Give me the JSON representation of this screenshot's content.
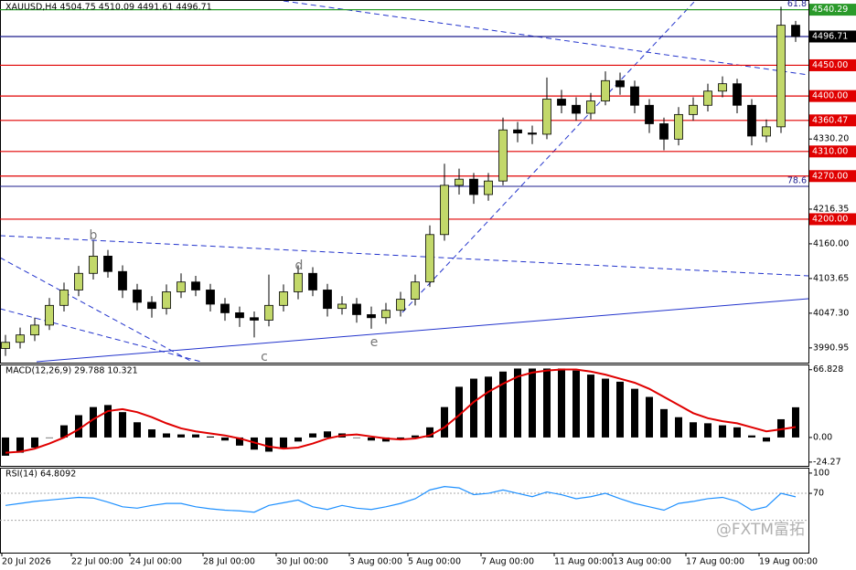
{
  "chart_data": [
    {
      "type": "candlestick",
      "title": "XAUUSD,H4  4504.75 4510.09 4491.61 4496.71",
      "categories": [
        "20 Jul 2026",
        null,
        null,
        null,
        null,
        "22 Jul 00:00",
        null,
        null,
        null,
        "24 Jul 00:00",
        null,
        null,
        null,
        null,
        "28 Jul 00:00",
        null,
        null,
        null,
        null,
        "30 Jul 00:00",
        null,
        null,
        null,
        null,
        "3 Aug 00:00",
        null,
        null,
        null,
        "5 Aug 00:00",
        null,
        null,
        null,
        null,
        "7 Aug 00:00",
        null,
        null,
        null,
        null,
        "11 Aug 00:00",
        null,
        null,
        null,
        "13 Aug 00:00",
        null,
        null,
        null,
        null,
        "17 Aug 00:00",
        null,
        null,
        null,
        null,
        "19 Aug 00:00",
        null,
        null
      ],
      "open": [
        3990,
        4000,
        4012,
        4028,
        4060,
        4085,
        4112,
        4140,
        4115,
        4085,
        4065,
        4055,
        4082,
        4098,
        4085,
        4062,
        4048,
        4040,
        4036,
        4060,
        4082,
        4112,
        4085,
        4055,
        4062,
        4045,
        4040,
        4052,
        4070,
        4098,
        4175,
        4255,
        4265,
        4240,
        4262,
        4345,
        4340,
        4338,
        4395,
        4385,
        4372,
        4392,
        4425,
        4415,
        4385,
        4355,
        4330,
        4370,
        4385,
        4408,
        4420,
        4385,
        4335,
        4350,
        4515
      ],
      "high": [
        4012,
        4024,
        4040,
        4072,
        4097,
        4124,
        4165,
        4150,
        4125,
        4095,
        4075,
        4094,
        4112,
        4108,
        4095,
        4072,
        4058,
        4050,
        4110,
        4094,
        4125,
        4122,
        4095,
        4075,
        4072,
        4058,
        4064,
        4082,
        4110,
        4190,
        4290,
        4282,
        4275,
        4275,
        4365,
        4358,
        4352,
        4430,
        4410,
        4398,
        4405,
        4440,
        4438,
        4425,
        4395,
        4365,
        4382,
        4398,
        4420,
        4432,
        4428,
        4395,
        4362,
        4545,
        4522
      ],
      "low": [
        3978,
        3990,
        4002,
        4020,
        4050,
        4075,
        4102,
        4105,
        4072,
        4052,
        4040,
        4045,
        4072,
        4075,
        4050,
        4035,
        4025,
        4008,
        4026,
        4050,
        4070,
        4075,
        4042,
        4045,
        4032,
        4022,
        4030,
        4042,
        4060,
        4090,
        4165,
        4240,
        4225,
        4230,
        4255,
        4325,
        4322,
        4330,
        4372,
        4360,
        4362,
        4385,
        4402,
        4372,
        4340,
        4312,
        4320,
        4360,
        4375,
        4398,
        4372,
        4320,
        4325,
        4340,
        4488
      ],
      "close": [
        4000,
        4012,
        4028,
        4060,
        4085,
        4112,
        4140,
        4115,
        4085,
        4065,
        4055,
        4082,
        4098,
        4085,
        4062,
        4048,
        4040,
        4036,
        4060,
        4082,
        4112,
        4085,
        4055,
        4062,
        4045,
        4040,
        4052,
        4070,
        4098,
        4175,
        4255,
        4265,
        4240,
        4262,
        4345,
        4340,
        4338,
        4395,
        4385,
        4372,
        4392,
        4425,
        4415,
        4385,
        4355,
        4330,
        4370,
        4385,
        4408,
        4420,
        4385,
        4335,
        4350,
        4515,
        4496.71
      ],
      "up_color": "#c2d86a",
      "down_color": "#000000",
      "ylim": [
        3967,
        4556
      ],
      "yticks": [
        {
          "value": 4330.2,
          "label": "4330.20"
        },
        4216.35,
        {
          "value": 4160,
          "label": "4160.00"
        },
        4103.65,
        {
          "value": 4047.3,
          "label": "4047.30"
        },
        3990.95
      ],
      "levels": [
        {
          "value": 4540.29,
          "color": "#2a9a2a",
          "box_color": "#2a9a2a"
        },
        {
          "value": 4496.71,
          "color": "#1c1c8c",
          "box_color": "#000000"
        },
        {
          "value": 4450,
          "label": "4450.00",
          "color": "#e00000",
          "box_color": "#e00000"
        },
        {
          "value": 4400,
          "label": "4400.00",
          "color": "#e00000",
          "box_color": "#e00000"
        },
        {
          "value": 4360.47,
          "color": "#e00000",
          "box_color": "#e00000"
        },
        {
          "value": 4310,
          "label": "4310.00",
          "color": "#e00000",
          "box_color": "#e00000"
        },
        {
          "value": 4270,
          "label": "4270.00",
          "color": "#e00000",
          "box_color": "#e00000"
        },
        {
          "value": 4200,
          "label": "4200.00",
          "color": "#e00000",
          "box_color": "#e00000"
        }
      ],
      "fib_labels": [
        {
          "value": 4540.29,
          "label": "61.8"
        },
        {
          "value": 4253.4,
          "label": "78.6",
          "color": "#1c1c8c"
        }
      ],
      "annotations": [
        "b",
        "c",
        "d",
        "e"
      ]
    },
    {
      "type": "macd",
      "title": "MACD(12,26,9) 29.788 10.321",
      "histogram": [
        -18,
        -15,
        -10,
        0,
        12,
        22,
        30,
        32,
        25,
        15,
        8,
        4,
        3,
        3,
        1,
        -3,
        -8,
        -12,
        -14,
        -10,
        -4,
        4,
        6,
        4,
        0,
        -3,
        -4,
        -2,
        2,
        10,
        30,
        50,
        58,
        60,
        65,
        68,
        68,
        68,
        68,
        66,
        62,
        58,
        55,
        48,
        40,
        28,
        20,
        15,
        14,
        12,
        10,
        2,
        -4,
        18,
        29.788
      ],
      "signal": [
        -15,
        -14,
        -11,
        -6,
        0,
        8,
        18,
        26,
        28,
        25,
        20,
        14,
        9,
        6,
        4,
        2,
        -1,
        -5,
        -9,
        -11,
        -10,
        -6,
        -1,
        2,
        3,
        1,
        -1,
        -2,
        -1,
        2,
        10,
        22,
        35,
        45,
        53,
        60,
        64,
        66,
        67,
        67,
        65,
        62,
        58,
        54,
        48,
        40,
        32,
        24,
        19,
        16,
        14,
        10,
        6,
        8,
        10.321
      ],
      "histogram_color": "#000000",
      "signal_color": "#e00000",
      "ylim": [
        -28,
        72
      ],
      "yticks": [
        66.828,
        {
          "value": 0,
          "label": "0.00"
        },
        -24.27
      ]
    },
    {
      "type": "line",
      "title": "RSI(14) 64.8092",
      "values": [
        52,
        55,
        58,
        60,
        62,
        64,
        63,
        57,
        50,
        48,
        52,
        55,
        55,
        50,
        47,
        45,
        44,
        42,
        52,
        56,
        60,
        50,
        46,
        52,
        48,
        46,
        50,
        55,
        62,
        75,
        80,
        78,
        68,
        70,
        75,
        70,
        65,
        72,
        68,
        62,
        65,
        70,
        62,
        55,
        50,
        45,
        55,
        58,
        62,
        64,
        58,
        45,
        50,
        70,
        64.8092
      ],
      "color": "#1e90ff",
      "ylim": [
        -18,
        108
      ],
      "yticks": [
        100,
        70
      ],
      "levels": [
        70,
        30
      ]
    }
  ],
  "watermark": "@FXTM富拓"
}
